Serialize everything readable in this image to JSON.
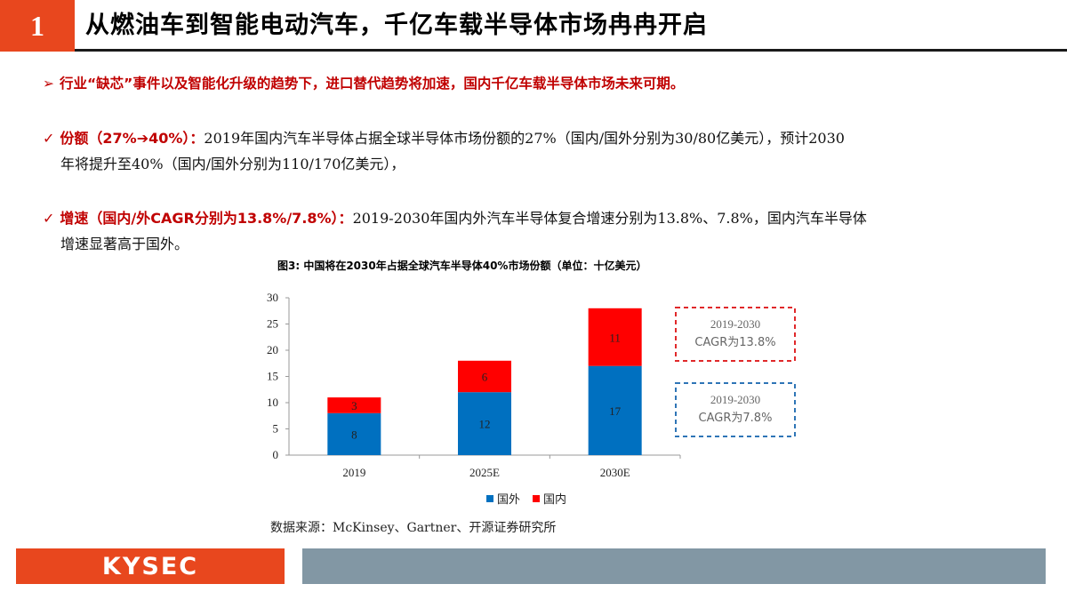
{
  "header": {
    "number": "1",
    "title": "从燃油车到智能电动汽车，千亿车载半导体市场冉冉开启"
  },
  "bullets": {
    "b1": {
      "marker": "➢",
      "text": "行业“缺芯”事件以及智能化升级的趋势下，进口替代趋势将加速，国内千亿车载半导体市场未来可期。"
    },
    "b2": {
      "marker": "✓",
      "label": "份额（27%➔40%）：",
      "line1": "2019年国内汽车半导体占据全球半导体市场份额的27%（国内/国外分别为30/80亿美元），预计2030",
      "line2": "年将提升至40%（国内/国外分别为110/170亿美元），"
    },
    "b3": {
      "marker": "✓",
      "label": "增速（国内/外CAGR分别为13.8%/7.8%）：",
      "line1": "2019-2030年国内外汽车半导体复合增速分别为13.8%、7.8%，国内汽车半导体",
      "line2": "增速显著高于国外。"
    }
  },
  "figure": {
    "title": "图3:  中国将在2030年占据全球汽车半导体40%市场份额（单位：十亿美元）",
    "source": "数据来源：McKinsey、Gartner、开源证券研究所"
  },
  "chart_data": {
    "type": "bar",
    "stacked": true,
    "title": "",
    "xlabel": "",
    "ylabel": "",
    "categories": [
      "2019",
      "2025E",
      "2030E"
    ],
    "series": [
      {
        "name": "国外",
        "values": [
          8,
          12,
          17
        ],
        "color": "#0070c0"
      },
      {
        "name": "国内",
        "values": [
          3,
          6,
          11
        ],
        "color": "#ff0000"
      }
    ],
    "ylim": [
      0,
      30
    ],
    "yticks": [
      0,
      5,
      10,
      15,
      20,
      25,
      30
    ],
    "grid": false,
    "legend": "bottom",
    "annotations": [
      {
        "line1": "2019-2030",
        "line2": "CAGR为13.8%",
        "color": "#e0282a"
      },
      {
        "line1": "2019-2030",
        "line2": "CAGR为7.8%",
        "color": "#2e75b6"
      }
    ]
  },
  "footer": {
    "logo": "KYSEC"
  }
}
